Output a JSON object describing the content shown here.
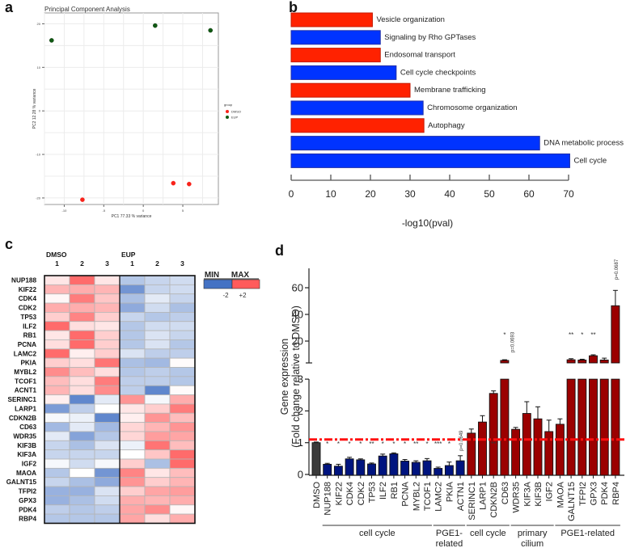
{
  "panels": {
    "a": "a",
    "b": "b",
    "c": "c",
    "d": "d"
  },
  "chart_data": [
    {
      "id": "a",
      "type": "scatter",
      "title": "Principal Component Analysis",
      "xlabel": "PC1 77.33 % variance",
      "ylabel": "PC2 12.28 % variance",
      "xlim": [
        -12.5,
        9.5
      ],
      "ylim": [
        -21.5,
        22.5
      ],
      "xticks": [
        -10,
        -5,
        0,
        5
      ],
      "yticks": [
        -20,
        -10,
        0,
        10,
        20
      ],
      "grid": true,
      "legend": {
        "title": "group",
        "position": "right",
        "entries": [
          {
            "name": "DMSO",
            "color": "#f8221a"
          },
          {
            "name": "EUP",
            "color": "#0f5a12"
          }
        ]
      },
      "series": [
        {
          "name": "DMSO",
          "color": "#f8221a",
          "points": [
            [
              -7.7,
              -20.4
            ],
            [
              3.8,
              -16.6
            ],
            [
              5.8,
              -16.8
            ]
          ]
        },
        {
          "name": "EUP",
          "color": "#0f5a12",
          "points": [
            [
              -11.6,
              16.2
            ],
            [
              1.5,
              19.6
            ],
            [
              8.5,
              18.5
            ]
          ]
        }
      ]
    },
    {
      "id": "b",
      "type": "bar",
      "orientation": "horizontal",
      "xlabel": "-log10(pval)",
      "xlim": [
        0,
        70
      ],
      "xticks": [
        0,
        10,
        20,
        30,
        40,
        50,
        60,
        70
      ],
      "categories": [
        "Vesicle organization",
        "Signaling by Rho GPTases",
        "Endosomal transport",
        "Cell cycle checkpoints",
        "Membrane trafficking",
        "Chromosome organization",
        "Autophagy",
        "DNA metabolic process",
        "Cell cycle"
      ],
      "values": [
        20.5,
        22.5,
        22.5,
        26.5,
        30,
        33.3,
        33.5,
        62.7,
        70.3
      ],
      "colors": [
        "#ff2200",
        "#0033ff",
        "#ff2200",
        "#0033ff",
        "#ff2200",
        "#0033ff",
        "#ff2200",
        "#0033ff",
        "#0033ff"
      ]
    },
    {
      "id": "c",
      "type": "heatmap",
      "groups": [
        {
          "name": "DMSO",
          "columns": [
            "1",
            "2",
            "3"
          ]
        },
        {
          "name": "EUP",
          "columns": [
            "1",
            "2",
            "3"
          ]
        }
      ],
      "rows": [
        "NUP188",
        "KIF22",
        "CDK4",
        "CDK2",
        "TP53",
        "ILF2",
        "RB1",
        "PCNA",
        "LAMC2",
        "PKIA",
        "MYBL2",
        "TCOF1",
        "ACNT1",
        "SERINC1",
        "LARP1",
        "CDKN2B",
        "CD63",
        "WDR35",
        "KIF3B",
        "KIF3A",
        "IGF2",
        "MAOA",
        "GALNT15",
        "TFPI2",
        "GPX3",
        "PDK4",
        "RBP4"
      ],
      "values": [
        [
          0.3,
          1.8,
          0.3,
          -0.8,
          -0.6,
          -0.5
        ],
        [
          0.9,
          1.0,
          0.9,
          -1.5,
          -0.6,
          -0.5
        ],
        [
          0.1,
          1.6,
          0.7,
          -0.9,
          -0.3,
          -0.6
        ],
        [
          1.0,
          1.0,
          0.9,
          -1.2,
          -0.5,
          -0.9
        ],
        [
          0.6,
          1.5,
          0.6,
          -0.6,
          -0.8,
          -0.7
        ],
        [
          1.8,
          0.4,
          0.3,
          -0.8,
          -0.5,
          -0.5
        ],
        [
          0.3,
          1.8,
          0.6,
          -0.8,
          -0.4,
          -0.6
        ],
        [
          0.4,
          1.8,
          0.6,
          -0.8,
          -0.4,
          -0.8
        ],
        [
          1.8,
          0.2,
          0.6,
          -0.4,
          -0.7,
          -0.7
        ],
        [
          0.6,
          0.4,
          1.7,
          -0.9,
          -1.0,
          0.05
        ],
        [
          1.4,
          0.8,
          0.4,
          -0.8,
          -0.7,
          -0.8
        ],
        [
          0.8,
          0.4,
          1.6,
          -0.7,
          -0.7,
          -0.8
        ],
        [
          0.9,
          0.4,
          1.4,
          -0.7,
          -1.7,
          0.05
        ],
        [
          0.2,
          -1.7,
          -0.3,
          1.3,
          -0.1,
          1.0
        ],
        [
          -1.4,
          -0.7,
          0.0,
          0.3,
          0.6,
          1.6
        ],
        [
          -0.1,
          -0.2,
          -1.7,
          0.2,
          1.3,
          0.8
        ],
        [
          -1.0,
          -0.3,
          -1.0,
          0.5,
          0.9,
          1.3
        ],
        [
          -0.3,
          -1.3,
          -0.8,
          0.5,
          1.2,
          1.1
        ],
        [
          -0.6,
          -0.9,
          -0.4,
          -0.2,
          1.7,
          0.8
        ],
        [
          -0.6,
          -0.6,
          -0.6,
          0.0,
          0.7,
          1.8
        ],
        [
          -0.1,
          -0.5,
          -0.1,
          0.6,
          -0.9,
          1.8
        ],
        [
          -0.8,
          0.0,
          -1.5,
          1.5,
          0.3,
          0.8
        ],
        [
          -0.6,
          -0.9,
          -1.2,
          1.3,
          0.6,
          0.9
        ],
        [
          -1.1,
          -1.1,
          -0.4,
          0.6,
          1.1,
          1.2
        ],
        [
          -1.1,
          -0.9,
          -0.5,
          1.0,
          0.9,
          1.0
        ],
        [
          -0.7,
          -0.8,
          -0.7,
          1.1,
          1.4,
          0.1
        ],
        [
          -0.8,
          -0.8,
          -0.8,
          1.1,
          0.4,
          1.0
        ]
      ],
      "legend": {
        "min_label": "MIN",
        "max_label": "MAX",
        "min_value": "-2",
        "max_value": "+2",
        "min_color": "#4472c4",
        "max_color": "#ff5b5b"
      }
    },
    {
      "id": "d",
      "type": "bar",
      "ylabel_line1": "Gene expression",
      "ylabel_line2": "(Fold change relative to DMSO)",
      "y_axis_break": {
        "lower_range": [
          0,
          3
        ],
        "upper_range": [
          4,
          75
        ]
      },
      "yticks_lower": [
        0,
        1,
        2,
        3
      ],
      "yticks_upper": [
        20,
        40,
        60
      ],
      "reference_line": 1.1,
      "categories": [
        "DMSO",
        "NUP188",
        "KIF22",
        "CDK4",
        "CDK2",
        "TP53",
        "ILF2",
        "RB1",
        "PCNA",
        "MYBL2",
        "TCOF1",
        "LAMC2",
        "PKIA",
        "ACTN1",
        "SERINC1",
        "LARP1",
        "CDKN2B",
        "CD63",
        "WDR35",
        "KIF3A",
        "KIF3B",
        "IGF2",
        "MAOA",
        "GALNT15",
        "TFPI2",
        "GPX3",
        "PDK4",
        "RBP4"
      ],
      "values": [
        1.0,
        0.32,
        0.26,
        0.49,
        0.46,
        0.33,
        0.58,
        0.65,
        0.42,
        0.38,
        0.43,
        0.19,
        0.28,
        0.43,
        1.3,
        1.65,
        2.55,
        5.5,
        1.42,
        1.92,
        1.75,
        1.35,
        1.58,
        6.0,
        5.8,
        9.0,
        5.8,
        46.5
      ],
      "errors": [
        0.02,
        0.03,
        0.06,
        0.05,
        0.03,
        0.03,
        0.06,
        0.03,
        0.05,
        0.05,
        0.07,
        0.04,
        0.11,
        0.16,
        0.13,
        0.2,
        0.08,
        0.5,
        0.06,
        0.37,
        0.38,
        0.36,
        0.17,
        0.8,
        0.6,
        0.7,
        1.4,
        11.5
      ],
      "colors": [
        "#3a3a3a",
        "#00147f",
        "#00147f",
        "#00147f",
        "#00147f",
        "#00147f",
        "#00147f",
        "#00147f",
        "#00147f",
        "#00147f",
        "#00147f",
        "#00147f",
        "#00147f",
        "#00147f",
        "#9b0000",
        "#9b0000",
        "#9b0000",
        "#9b0000",
        "#9b0000",
        "#9b0000",
        "#9b0000",
        "#9b0000",
        "#9b0000",
        "#9b0000",
        "#9b0000",
        "#9b0000",
        "#9b0000",
        "#9b0000"
      ],
      "significance": [
        "",
        "*",
        "*",
        "*",
        "*",
        "**",
        "*",
        "*",
        "*",
        "**",
        "*",
        "***",
        "*",
        "p=0.0649",
        "",
        "",
        "**",
        "*",
        "p=0.0693",
        "",
        "",
        "",
        "",
        "**",
        "*",
        "**",
        "",
        "p=0.0687"
      ],
      "groups": [
        {
          "label_line1": "cell cycle",
          "label_line2": "",
          "from": 1,
          "to": 10
        },
        {
          "label_line1": "PGE1-",
          "label_line2": "related",
          "from": 11,
          "to": 13
        },
        {
          "label_line1": "cell cycle",
          "label_line2": "",
          "from": 14,
          "to": 17
        },
        {
          "label_line1": "primary",
          "label_line2": "cilium",
          "from": 18,
          "to": 21
        },
        {
          "label_line1": "PGE1-related",
          "label_line2": "",
          "from": 22,
          "to": 27
        }
      ]
    }
  ]
}
